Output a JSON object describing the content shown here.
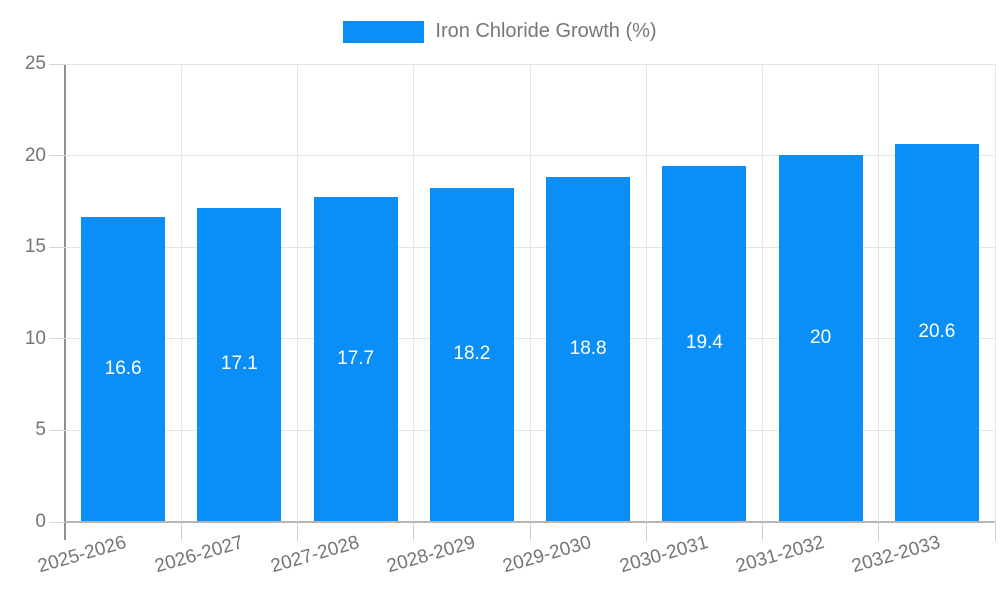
{
  "chart_data": {
    "type": "bar",
    "title": "",
    "series_name": "Iron Chloride Growth (%)",
    "categories": [
      "2025-2026",
      "2026-2027",
      "2027-2028",
      "2028-2029",
      "2029-2030",
      "2030-2031",
      "2031-2032",
      "2032-2033"
    ],
    "values": [
      16.6,
      17.1,
      17.7,
      18.2,
      18.8,
      19.4,
      20,
      20.6
    ],
    "xlabel": "",
    "ylabel": "",
    "ylim": [
      0,
      25
    ],
    "yticks": [
      0,
      5,
      10,
      15,
      20,
      25
    ],
    "grid": "on",
    "legend_position": "top-center",
    "bar_color": "#0a8ef8",
    "value_label_color": "#ffffff",
    "axis_label_color": "#757575",
    "gridline_color": "#e5e5e5"
  },
  "legend": {
    "label": "Iron Chloride Growth (%)",
    "swatch_color": "#0a8ef8"
  }
}
